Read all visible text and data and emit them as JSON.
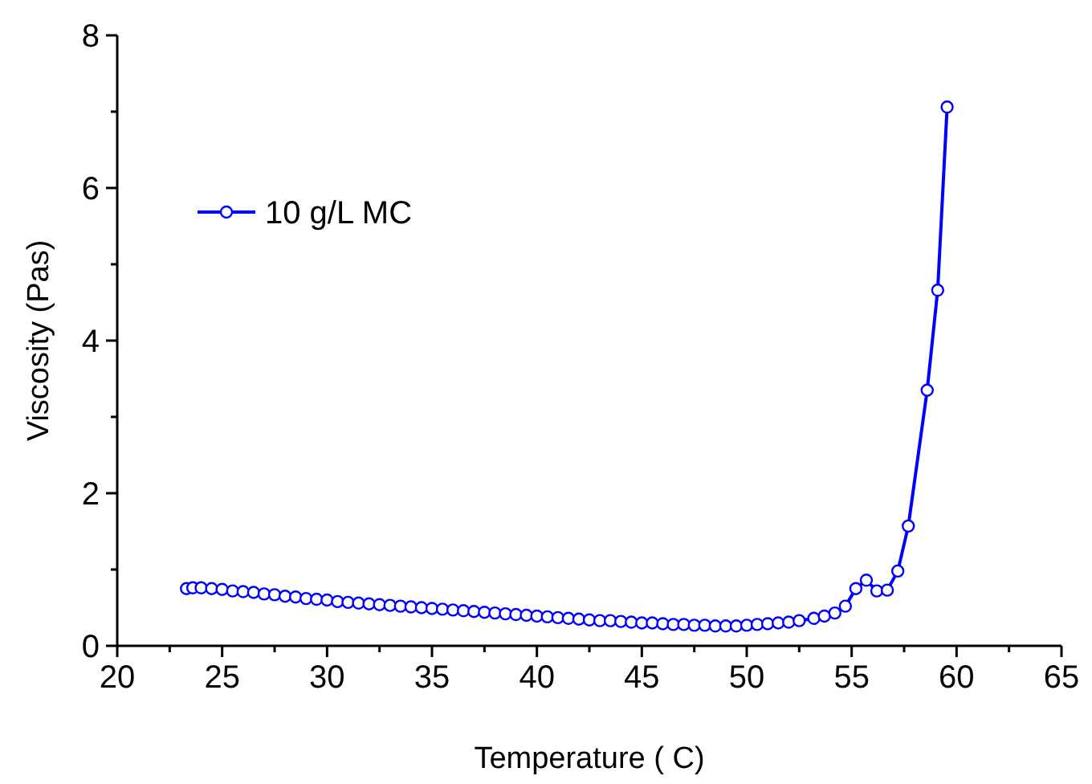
{
  "chart_data": {
    "type": "line",
    "xlabel": "Temperature ( C)",
    "ylabel": "Viscosity (Pas)",
    "xlim": [
      20,
      65
    ],
    "ylim": [
      0,
      8
    ],
    "xticks": [
      20,
      {
        "value": 22.5,
        "label": null
      },
      25,
      {
        "value": 27.5,
        "label": null
      },
      30,
      {
        "value": 32.5,
        "label": null
      },
      35,
      {
        "value": 37.5,
        "label": null
      },
      40,
      {
        "value": 42.5,
        "label": null
      },
      45,
      {
        "value": 47.5,
        "label": null
      },
      50,
      {
        "value": 52.5,
        "label": null
      },
      55,
      {
        "value": 57.5,
        "label": null
      },
      60,
      {
        "value": 62.5,
        "label": null
      },
      65
    ],
    "yticks": [
      0,
      {
        "value": 1,
        "label": null
      },
      2,
      {
        "value": 3,
        "label": null
      },
      4,
      {
        "value": 5,
        "label": null
      },
      6,
      {
        "value": 7,
        "label": null
      },
      8
    ],
    "grid": false,
    "legend": "top left",
    "marker": "circle",
    "line_style": "solid",
    "series": [
      {
        "name": "10 g/L MC",
        "color": "#0000ff",
        "x": [
          23.3,
          23.6,
          24,
          24.5,
          25,
          25.5,
          26,
          26.5,
          27,
          27.5,
          28,
          28.5,
          29,
          29.5,
          30,
          30.5,
          31,
          31.5,
          32,
          32.5,
          33,
          33.5,
          34,
          34.5,
          35,
          35.5,
          36,
          36.5,
          37,
          37.5,
          38,
          38.5,
          39,
          39.5,
          40,
          40.5,
          41,
          41.5,
          42,
          42.5,
          43,
          43.5,
          44,
          44.5,
          45,
          45.5,
          46,
          46.5,
          47,
          47.5,
          48,
          48.5,
          49,
          49.5,
          50,
          50.5,
          51,
          51.5,
          52,
          52.5,
          53.2,
          53.7,
          54.2,
          54.7,
          55.2,
          55.7,
          56.2,
          56.7,
          57.2,
          57.7,
          58.6,
          59.1,
          59.55
        ],
        "values": [
          0.75,
          0.76,
          0.76,
          0.75,
          0.74,
          0.72,
          0.71,
          0.7,
          0.68,
          0.67,
          0.65,
          0.64,
          0.62,
          0.61,
          0.6,
          0.58,
          0.57,
          0.56,
          0.55,
          0.54,
          0.53,
          0.52,
          0.51,
          0.5,
          0.49,
          0.48,
          0.47,
          0.46,
          0.45,
          0.44,
          0.43,
          0.42,
          0.41,
          0.4,
          0.39,
          0.38,
          0.37,
          0.36,
          0.35,
          0.34,
          0.33,
          0.33,
          0.32,
          0.31,
          0.3,
          0.3,
          0.29,
          0.28,
          0.28,
          0.27,
          0.27,
          0.26,
          0.26,
          0.26,
          0.27,
          0.28,
          0.29,
          0.3,
          0.31,
          0.33,
          0.36,
          0.39,
          0.43,
          0.52,
          0.75,
          0.86,
          0.72,
          0.73,
          0.98,
          1.57,
          3.35,
          4.66,
          7.06
        ]
      }
    ]
  }
}
